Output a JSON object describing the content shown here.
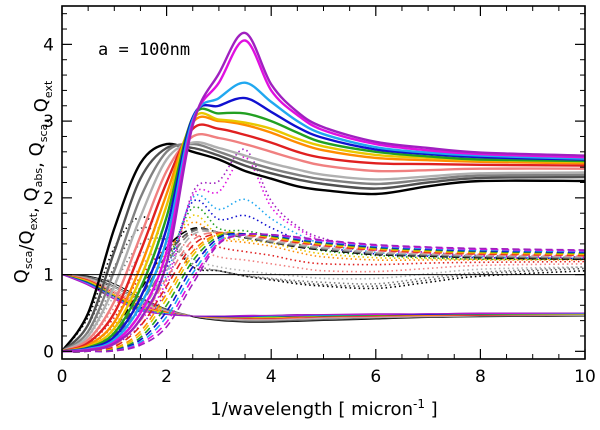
{
  "chart_data": {
    "type": "line",
    "title": "",
    "annotation": "a = 100nm",
    "xlabel": "1/wavelength [ micron",
    "xlabel_sup": "-1",
    "xlabel_end": " ]",
    "ylabel": {
      "parts": [
        {
          "main": "Q",
          "sub": "sca"
        },
        {
          "main": "/",
          "sub": ""
        },
        {
          "main": "Q",
          "sub": "ext"
        },
        {
          "main": ",  ",
          "sub": ""
        },
        {
          "main": "Q",
          "sub": "abs"
        },
        {
          "main": ",  ",
          "sub": ""
        },
        {
          "main": "Q",
          "sub": "sca"
        },
        {
          "main": ",  ",
          "sub": ""
        },
        {
          "main": "Q",
          "sub": "ext"
        }
      ]
    },
    "xlim": [
      0,
      10
    ],
    "ylim": [
      -0.1,
      4.5
    ],
    "x_ticks": [
      0,
      2,
      4,
      6,
      8,
      10
    ],
    "y_ticks": [
      0,
      1,
      2,
      3,
      4
    ],
    "x_tick_labels": [
      "0",
      "2",
      "4",
      "6",
      "8",
      "10"
    ],
    "y_tick_labels": [
      "0",
      "1",
      "2",
      "3",
      "4"
    ],
    "reference_line_y": 1,
    "line_styles": {
      "Q_ext": "thick solid",
      "Q_sca/Q_ext": "thin solid",
      "Q_abs": "dashed",
      "Q_sca": "dotted"
    },
    "x": [
      0,
      0.5,
      1,
      1.5,
      2,
      2.5,
      3,
      3.5,
      4,
      4.5,
      5,
      6,
      7,
      8,
      10
    ],
    "series": [
      {
        "name": "black",
        "color": "#000000",
        "Q_ext": [
          0,
          0.5,
          1.6,
          2.45,
          2.7,
          2.6,
          2.5,
          2.35,
          2.25,
          2.15,
          2.1,
          2.05,
          2.15,
          2.22,
          2.22
        ],
        "Q_sca_over_Q_ext": [
          1,
          0.98,
          0.88,
          0.7,
          0.55,
          0.45,
          0.4,
          0.38,
          0.38,
          0.39,
          0.4,
          0.42,
          0.44,
          0.45,
          0.46
        ],
        "Q_abs": [
          0,
          0.02,
          0.3,
          0.8,
          1.35,
          1.6,
          1.55,
          1.48,
          1.42,
          1.36,
          1.32,
          1.26,
          1.24,
          1.22,
          1.2
        ],
        "Q_sca": [
          0,
          0.45,
          1.35,
          1.75,
          1.5,
          1.1,
          1.05,
          0.98,
          0.93,
          0.88,
          0.85,
          0.82,
          0.9,
          0.98,
          1.05
        ]
      },
      {
        "name": "dark-gray",
        "color": "#505050",
        "Q_ext": [
          0,
          0.35,
          1.3,
          2.25,
          2.65,
          2.65,
          2.55,
          2.42,
          2.32,
          2.24,
          2.18,
          2.12,
          2.2,
          2.26,
          2.27
        ],
        "Q_sca_over_Q_ext": [
          1,
          0.97,
          0.85,
          0.68,
          0.55,
          0.46,
          0.41,
          0.39,
          0.39,
          0.4,
          0.41,
          0.43,
          0.45,
          0.46,
          0.47
        ],
        "Q_abs": [
          0,
          0.01,
          0.22,
          0.7,
          1.25,
          1.58,
          1.55,
          1.48,
          1.42,
          1.37,
          1.33,
          1.27,
          1.25,
          1.23,
          1.21
        ],
        "Q_sca": [
          0,
          0.34,
          1.1,
          1.6,
          1.45,
          1.1,
          1.05,
          0.98,
          0.94,
          0.9,
          0.87,
          0.85,
          0.93,
          1.01,
          1.08
        ]
      },
      {
        "name": "gray",
        "color": "#808080",
        "Q_ext": [
          0,
          0.26,
          1.05,
          2.0,
          2.6,
          2.7,
          2.6,
          2.48,
          2.38,
          2.3,
          2.24,
          2.18,
          2.24,
          2.29,
          2.3
        ],
        "Q_sca_over_Q_ext": [
          1,
          0.96,
          0.83,
          0.66,
          0.54,
          0.46,
          0.42,
          0.4,
          0.4,
          0.41,
          0.42,
          0.44,
          0.45,
          0.46,
          0.47
        ],
        "Q_abs": [
          0,
          0.01,
          0.16,
          0.6,
          1.15,
          1.56,
          1.55,
          1.49,
          1.43,
          1.38,
          1.34,
          1.28,
          1.26,
          1.24,
          1.22
        ],
        "Q_sca": [
          0,
          0.25,
          0.88,
          1.4,
          1.45,
          1.14,
          1.05,
          0.99,
          0.95,
          0.92,
          0.9,
          0.88,
          0.96,
          1.03,
          1.1
        ]
      },
      {
        "name": "light-gray",
        "color": "#b0b0b0",
        "Q_ext": [
          0,
          0.2,
          0.85,
          1.75,
          2.5,
          2.72,
          2.65,
          2.55,
          2.45,
          2.37,
          2.3,
          2.24,
          2.28,
          2.32,
          2.33
        ],
        "Q_sca_over_Q_ext": [
          1,
          0.95,
          0.8,
          0.64,
          0.53,
          0.46,
          0.42,
          0.41,
          0.41,
          0.42,
          0.43,
          0.44,
          0.45,
          0.46,
          0.47
        ],
        "Q_abs": [
          0,
          0.01,
          0.12,
          0.5,
          1.05,
          1.52,
          1.55,
          1.5,
          1.44,
          1.39,
          1.35,
          1.29,
          1.27,
          1.25,
          1.23
        ],
        "Q_sca": [
          0,
          0.19,
          0.73,
          1.25,
          1.45,
          1.2,
          1.1,
          1.05,
          1.01,
          0.98,
          0.95,
          0.95,
          1.01,
          1.07,
          1.1
        ]
      },
      {
        "name": "pink",
        "color": "#f08080",
        "Q_ext": [
          0,
          0.15,
          0.65,
          1.5,
          2.35,
          2.8,
          2.78,
          2.7,
          2.6,
          2.5,
          2.42,
          2.35,
          2.36,
          2.38,
          2.38
        ],
        "Q_sca_over_Q_ext": [
          1,
          0.94,
          0.78,
          0.62,
          0.52,
          0.46,
          0.43,
          0.42,
          0.42,
          0.43,
          0.44,
          0.45,
          0.46,
          0.47,
          0.48
        ],
        "Q_abs": [
          0,
          0.005,
          0.08,
          0.4,
          0.95,
          1.45,
          1.55,
          1.51,
          1.46,
          1.41,
          1.37,
          1.31,
          1.28,
          1.26,
          1.24
        ],
        "Q_sca": [
          0,
          0.14,
          0.57,
          1.1,
          1.4,
          1.35,
          1.23,
          1.19,
          1.14,
          1.09,
          1.05,
          1.04,
          1.08,
          1.12,
          1.14
        ]
      },
      {
        "name": "red",
        "color": "#e02020",
        "Q_ext": [
          0,
          0.11,
          0.5,
          1.3,
          2.2,
          2.9,
          2.9,
          2.82,
          2.72,
          2.6,
          2.52,
          2.45,
          2.44,
          2.43,
          2.42
        ],
        "Q_sca_over_Q_ext": [
          1,
          0.93,
          0.76,
          0.6,
          0.51,
          0.46,
          0.44,
          0.43,
          0.43,
          0.44,
          0.45,
          0.46,
          0.47,
          0.47,
          0.48
        ],
        "Q_abs": [
          0,
          0.004,
          0.06,
          0.33,
          0.85,
          1.38,
          1.54,
          1.52,
          1.47,
          1.42,
          1.38,
          1.32,
          1.29,
          1.27,
          1.25
        ],
        "Q_sca": [
          0,
          0.1,
          0.44,
          0.97,
          1.35,
          1.52,
          1.36,
          1.3,
          1.25,
          1.18,
          1.14,
          1.13,
          1.15,
          1.16,
          1.17
        ]
      },
      {
        "name": "orange",
        "color": "#ff8c00",
        "Q_ext": [
          0,
          0.08,
          0.38,
          1.1,
          2.05,
          2.98,
          3.0,
          2.95,
          2.85,
          2.72,
          2.62,
          2.52,
          2.49,
          2.47,
          2.45
        ],
        "Q_sca_over_Q_ext": [
          1,
          0.92,
          0.74,
          0.58,
          0.5,
          0.46,
          0.44,
          0.44,
          0.44,
          0.45,
          0.46,
          0.47,
          0.47,
          0.48,
          0.48
        ],
        "Q_abs": [
          0,
          0.003,
          0.04,
          0.26,
          0.75,
          1.3,
          1.53,
          1.53,
          1.48,
          1.43,
          1.39,
          1.33,
          1.3,
          1.28,
          1.26
        ],
        "Q_sca": [
          0,
          0.07,
          0.34,
          0.84,
          1.3,
          1.68,
          1.47,
          1.42,
          1.37,
          1.29,
          1.23,
          1.19,
          1.19,
          1.19,
          1.19
        ]
      },
      {
        "name": "yellow",
        "color": "#e8c800",
        "Q_ext": [
          0,
          0.06,
          0.3,
          0.95,
          1.9,
          3.02,
          3.02,
          2.98,
          2.9,
          2.77,
          2.67,
          2.56,
          2.52,
          2.49,
          2.47
        ],
        "Q_sca_over_Q_ext": [
          1,
          0.91,
          0.73,
          0.57,
          0.5,
          0.46,
          0.45,
          0.44,
          0.44,
          0.45,
          0.46,
          0.47,
          0.48,
          0.48,
          0.48
        ],
        "Q_abs": [
          0,
          0.002,
          0.03,
          0.22,
          0.68,
          1.25,
          1.52,
          1.53,
          1.49,
          1.44,
          1.4,
          1.34,
          1.31,
          1.29,
          1.27
        ],
        "Q_sca": [
          0,
          0.05,
          0.27,
          0.73,
          1.22,
          1.77,
          1.5,
          1.45,
          1.41,
          1.33,
          1.27,
          1.22,
          1.21,
          1.2,
          1.2
        ]
      },
      {
        "name": "green",
        "color": "#22a022",
        "Q_ext": [
          0,
          0.05,
          0.24,
          0.82,
          1.75,
          3.05,
          3.1,
          3.1,
          3.0,
          2.85,
          2.72,
          2.6,
          2.54,
          2.5,
          2.48
        ],
        "Q_sca_over_Q_ext": [
          1,
          0.9,
          0.72,
          0.56,
          0.49,
          0.46,
          0.45,
          0.45,
          0.45,
          0.46,
          0.46,
          0.47,
          0.48,
          0.48,
          0.49
        ],
        "Q_abs": [
          0,
          0.002,
          0.02,
          0.18,
          0.6,
          1.18,
          1.5,
          1.53,
          1.5,
          1.45,
          1.41,
          1.35,
          1.32,
          1.3,
          1.28
        ],
        "Q_sca": [
          0,
          0.04,
          0.22,
          0.64,
          1.15,
          1.87,
          1.6,
          1.57,
          1.5,
          1.4,
          1.31,
          1.25,
          1.22,
          1.2,
          1.2
        ]
      },
      {
        "name": "blue",
        "color": "#1010d0",
        "Q_ext": [
          0,
          0.04,
          0.19,
          0.7,
          1.6,
          3.05,
          3.2,
          3.3,
          3.12,
          2.92,
          2.78,
          2.63,
          2.57,
          2.53,
          2.5
        ],
        "Q_sca_over_Q_ext": [
          1,
          0.89,
          0.71,
          0.55,
          0.49,
          0.46,
          0.45,
          0.45,
          0.46,
          0.46,
          0.47,
          0.48,
          0.48,
          0.49,
          0.49
        ],
        "Q_abs": [
          0,
          0.001,
          0.015,
          0.15,
          0.52,
          1.1,
          1.48,
          1.53,
          1.51,
          1.46,
          1.42,
          1.36,
          1.33,
          1.31,
          1.29
        ],
        "Q_sca": [
          0,
          0.04,
          0.18,
          0.55,
          1.08,
          1.95,
          1.72,
          1.77,
          1.61,
          1.46,
          1.36,
          1.27,
          1.24,
          1.22,
          1.21
        ]
      },
      {
        "name": "sky-blue",
        "color": "#20a8f0",
        "Q_ext": [
          0,
          0.03,
          0.15,
          0.6,
          1.45,
          3.02,
          3.3,
          3.5,
          3.25,
          3.0,
          2.83,
          2.66,
          2.59,
          2.55,
          2.51
        ],
        "Q_sca_over_Q_ext": [
          1,
          0.88,
          0.7,
          0.55,
          0.49,
          0.46,
          0.46,
          0.46,
          0.46,
          0.47,
          0.47,
          0.48,
          0.49,
          0.49,
          0.49
        ],
        "Q_abs": [
          0,
          0.001,
          0.01,
          0.12,
          0.45,
          1.02,
          1.45,
          1.52,
          1.52,
          1.47,
          1.43,
          1.37,
          1.34,
          1.32,
          1.3
        ],
        "Q_sca": [
          0,
          0.03,
          0.15,
          0.48,
          1.0,
          2.0,
          1.85,
          1.98,
          1.73,
          1.53,
          1.4,
          1.29,
          1.25,
          1.23,
          1.21
        ]
      },
      {
        "name": "magenta",
        "color": "#e010e0",
        "Q_ext": [
          0,
          0.02,
          0.12,
          0.5,
          1.3,
          2.98,
          3.5,
          4.05,
          3.4,
          3.08,
          2.88,
          2.7,
          2.62,
          2.57,
          2.53
        ],
        "Q_sca_over_Q_ext": [
          1,
          0.87,
          0.69,
          0.54,
          0.48,
          0.46,
          0.46,
          0.46,
          0.47,
          0.47,
          0.48,
          0.48,
          0.49,
          0.49,
          0.5
        ],
        "Q_abs": [
          0,
          0.001,
          0.008,
          0.1,
          0.38,
          0.95,
          1.42,
          1.52,
          1.52,
          1.48,
          1.44,
          1.38,
          1.35,
          1.33,
          1.31
        ],
        "Q_sca": [
          0,
          0.02,
          0.11,
          0.4,
          0.92,
          2.03,
          2.08,
          2.53,
          1.88,
          1.6,
          1.44,
          1.32,
          1.27,
          1.24,
          1.22
        ]
      },
      {
        "name": "purple",
        "color": "#a020c0",
        "Q_ext": [
          0,
          0.015,
          0.1,
          0.42,
          1.15,
          2.95,
          3.62,
          4.15,
          3.48,
          3.12,
          2.92,
          2.73,
          2.65,
          2.59,
          2.55
        ],
        "Q_sca_over_Q_ext": [
          1,
          0.86,
          0.68,
          0.53,
          0.48,
          0.46,
          0.46,
          0.47,
          0.47,
          0.48,
          0.48,
          0.49,
          0.49,
          0.5,
          0.5
        ],
        "Q_abs": [
          0,
          0.001,
          0.006,
          0.08,
          0.32,
          0.88,
          1.4,
          1.52,
          1.52,
          1.49,
          1.45,
          1.39,
          1.36,
          1.34,
          1.32
        ],
        "Q_sca": [
          0,
          0.01,
          0.09,
          0.34,
          0.83,
          2.07,
          2.22,
          2.63,
          1.96,
          1.63,
          1.47,
          1.34,
          1.29,
          1.25,
          1.23
        ]
      }
    ]
  }
}
